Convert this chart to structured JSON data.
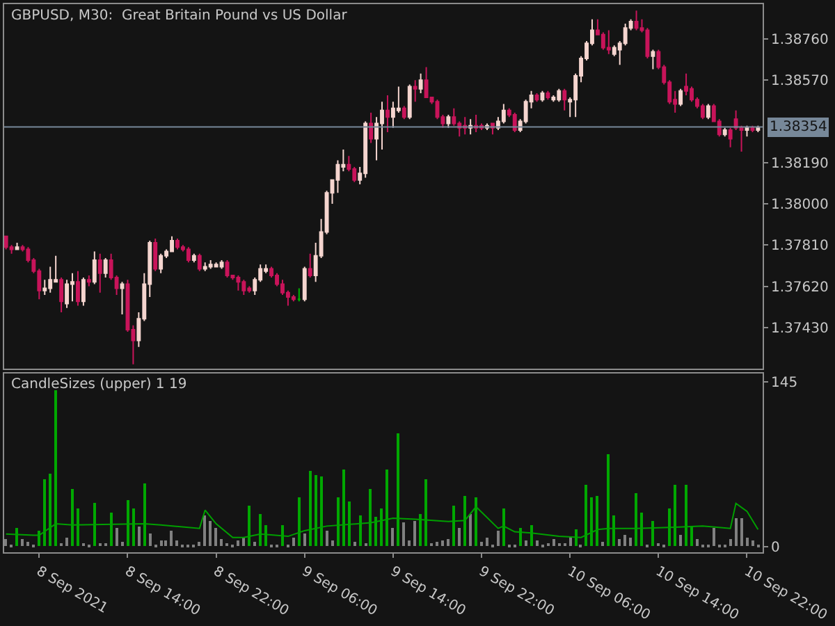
{
  "chart_data": [
    {
      "type": "candlestick",
      "title": "GBPUSD, M30:  Great Britain Pound vs US Dollar",
      "x": [
        "2021-09-08T03:00",
        "2021-09-08T03:30",
        "2021-09-08T04:00",
        "2021-09-08T04:30",
        "2021-09-08T05:00",
        "2021-09-08T05:30",
        "2021-09-08T06:00",
        "2021-09-08T06:30",
        "2021-09-08T07:00",
        "2021-09-08T07:30",
        "2021-09-08T08:00",
        "2021-09-08T08:30",
        "2021-09-08T09:00",
        "2021-09-08T09:30",
        "2021-09-08T10:00",
        "2021-09-08T10:30",
        "2021-09-08T11:00",
        "2021-09-08T11:30",
        "2021-09-08T12:00",
        "2021-09-08T12:30",
        "2021-09-08T13:00",
        "2021-09-08T13:30",
        "2021-09-08T14:00",
        "2021-09-08T14:30",
        "2021-09-08T15:00",
        "2021-09-08T15:30",
        "2021-09-08T16:00",
        "2021-09-08T16:30",
        "2021-09-08T17:00",
        "2021-09-08T17:30",
        "2021-09-08T18:00",
        "2021-09-08T18:30",
        "2021-09-08T19:00",
        "2021-09-08T19:30",
        "2021-09-08T20:00",
        "2021-09-08T20:30",
        "2021-09-08T21:00",
        "2021-09-08T21:30",
        "2021-09-08T22:00",
        "2021-09-08T22:30",
        "2021-09-08T23:00",
        "2021-09-08T23:30",
        "2021-09-09T00:00",
        "2021-09-09T00:30",
        "2021-09-09T01:00",
        "2021-09-09T01:30",
        "2021-09-09T02:00",
        "2021-09-09T02:30",
        "2021-09-09T03:00",
        "2021-09-09T03:30",
        "2021-09-09T04:00",
        "2021-09-09T04:30",
        "2021-09-09T05:00",
        "2021-09-09T05:30",
        "2021-09-09T06:00",
        "2021-09-09T06:30",
        "2021-09-09T07:00",
        "2021-09-09T07:30",
        "2021-09-09T08:00",
        "2021-09-09T08:30",
        "2021-09-09T09:00",
        "2021-09-09T09:30",
        "2021-09-09T10:00",
        "2021-09-09T10:30",
        "2021-09-09T11:00",
        "2021-09-09T11:30",
        "2021-09-09T12:00",
        "2021-09-09T12:30",
        "2021-09-09T13:00",
        "2021-09-09T13:30",
        "2021-09-09T14:00",
        "2021-09-09T14:30",
        "2021-09-09T15:00",
        "2021-09-09T15:30",
        "2021-09-09T16:00",
        "2021-09-09T16:30",
        "2021-09-09T17:00",
        "2021-09-09T17:30",
        "2021-09-09T18:00",
        "2021-09-09T18:30",
        "2021-09-09T19:00",
        "2021-09-09T19:30",
        "2021-09-09T20:00",
        "2021-09-09T20:30",
        "2021-09-09T21:00",
        "2021-09-09T21:30",
        "2021-09-09T22:00",
        "2021-09-09T22:30",
        "2021-09-09T23:00",
        "2021-09-09T23:30",
        "2021-09-10T00:00",
        "2021-09-10T00:30",
        "2021-09-10T01:00",
        "2021-09-10T01:30",
        "2021-09-10T02:00",
        "2021-09-10T02:30",
        "2021-09-10T03:00",
        "2021-09-10T03:30",
        "2021-09-10T04:00",
        "2021-09-10T04:30",
        "2021-09-10T05:00",
        "2021-09-10T05:30",
        "2021-09-10T06:00",
        "2021-09-10T06:30",
        "2021-09-10T07:00",
        "2021-09-10T07:30",
        "2021-09-10T08:00",
        "2021-09-10T08:30",
        "2021-09-10T09:00",
        "2021-09-10T09:30",
        "2021-09-10T10:00",
        "2021-09-10T10:30",
        "2021-09-10T11:00",
        "2021-09-10T11:30",
        "2021-09-10T12:00",
        "2021-09-10T12:30",
        "2021-09-10T13:00",
        "2021-09-10T13:30",
        "2021-09-10T14:00",
        "2021-09-10T14:30",
        "2021-09-10T15:00",
        "2021-09-10T15:30",
        "2021-09-10T16:00",
        "2021-09-10T16:30",
        "2021-09-10T17:00",
        "2021-09-10T17:30",
        "2021-09-10T18:00",
        "2021-09-10T18:30",
        "2021-09-10T19:00",
        "2021-09-10T19:30",
        "2021-09-10T20:00",
        "2021-09-10T20:30",
        "2021-09-10T21:00",
        "2021-09-10T21:30",
        "2021-09-10T22:00",
        "2021-09-10T22:30",
        "2021-09-10T23:00"
      ],
      "ohlc": [
        [
          1.3785,
          1.3785,
          1.3779,
          1.378
        ],
        [
          1.378,
          1.3781,
          1.3777,
          1.3779
        ],
        [
          1.3779,
          1.3782,
          1.3779,
          1.378
        ],
        [
          1.378,
          1.3781,
          1.3778,
          1.3779
        ],
        [
          1.3779,
          1.378,
          1.3773,
          1.3774
        ],
        [
          1.3774,
          1.3775,
          1.3768,
          1.3769
        ],
        [
          1.3769,
          1.377,
          1.3756,
          1.376
        ],
        [
          1.376,
          1.3765,
          1.3758,
          1.3761
        ],
        [
          1.3761,
          1.3771,
          1.3759,
          1.3765
        ],
        [
          1.3764,
          1.3776,
          1.3764,
          1.3765
        ],
        [
          1.3765,
          1.3766,
          1.375,
          1.3755
        ],
        [
          1.3754,
          1.3765,
          1.3752,
          1.3763
        ],
        [
          1.3763,
          1.3768,
          1.3755,
          1.3764
        ],
        [
          1.3764,
          1.3769,
          1.3753,
          1.3755
        ],
        [
          1.3755,
          1.3766,
          1.3753,
          1.3765
        ],
        [
          1.3765,
          1.3767,
          1.3762,
          1.3764
        ],
        [
          1.3764,
          1.3778,
          1.3763,
          1.3774
        ],
        [
          1.3774,
          1.3777,
          1.3759,
          1.3768
        ],
        [
          1.3768,
          1.3775,
          1.3766,
          1.3774
        ],
        [
          1.3774,
          1.3777,
          1.3765,
          1.3766
        ],
        [
          1.3766,
          1.3767,
          1.3758,
          1.3761
        ],
        [
          1.3761,
          1.3764,
          1.3749,
          1.3763
        ],
        [
          1.3763,
          1.3765,
          1.3741,
          1.3742
        ],
        [
          1.3742,
          1.3744,
          1.3726,
          1.3737
        ],
        [
          1.3737,
          1.375,
          1.3734,
          1.3747
        ],
        [
          1.3747,
          1.3768,
          1.3746,
          1.3763
        ],
        [
          1.3763,
          1.3783,
          1.3757,
          1.3782
        ],
        [
          1.3782,
          1.3784,
          1.3769,
          1.377
        ],
        [
          1.377,
          1.3777,
          1.3768,
          1.3776
        ],
        [
          1.3776,
          1.3779,
          1.3775,
          1.3778
        ],
        [
          1.3778,
          1.3785,
          1.3778,
          1.3783
        ],
        [
          1.3783,
          1.3784,
          1.3779,
          1.378
        ],
        [
          1.378,
          1.3781,
          1.3778,
          1.3779
        ],
        [
          1.3779,
          1.378,
          1.3773,
          1.3774
        ],
        [
          1.3774,
          1.3777,
          1.3773,
          1.3776
        ],
        [
          1.3776,
          1.3777,
          1.3769,
          1.377
        ],
        [
          1.377,
          1.3773,
          1.3769,
          1.3771
        ],
        [
          1.3771,
          1.3774,
          1.377,
          1.3772
        ],
        [
          1.3771,
          1.3773,
          1.3771,
          1.3772
        ],
        [
          1.3771,
          1.3774,
          1.377,
          1.3773
        ],
        [
          1.3773,
          1.3774,
          1.3766,
          1.3767
        ],
        [
          1.3767,
          1.3767,
          1.3765,
          1.3766
        ],
        [
          1.3766,
          1.3767,
          1.376,
          1.3764
        ],
        [
          1.3764,
          1.3765,
          1.3758,
          1.376
        ],
        [
          1.3761,
          1.3762,
          1.3759,
          1.376
        ],
        [
          1.376,
          1.3766,
          1.3758,
          1.3765
        ],
        [
          1.3765,
          1.3772,
          1.3764,
          1.377
        ],
        [
          1.3769,
          1.3772,
          1.3768,
          1.377
        ],
        [
          1.377,
          1.3771,
          1.3766,
          1.3767
        ],
        [
          1.3767,
          1.3768,
          1.3762,
          1.3763
        ],
        [
          1.3763,
          1.3765,
          1.3758,
          1.3759
        ],
        [
          1.3759,
          1.376,
          1.3753,
          1.3757
        ],
        [
          1.3757,
          1.3758,
          1.3755,
          1.3756
        ],
        [
          1.3756,
          1.3761,
          1.3755,
          1.3756
        ],
        [
          1.3756,
          1.3771,
          1.3755,
          1.377
        ],
        [
          1.377,
          1.3777,
          1.3766,
          1.3767
        ],
        [
          1.3767,
          1.3782,
          1.3764,
          1.3776
        ],
        [
          1.3776,
          1.3793,
          1.3775,
          1.3787
        ],
        [
          1.3787,
          1.3806,
          1.3786,
          1.3805
        ],
        [
          1.3805,
          1.3811,
          1.38,
          1.3811
        ],
        [
          1.3811,
          1.382,
          1.3805,
          1.3818
        ],
        [
          1.3817,
          1.3825,
          1.3815,
          1.3818
        ],
        [
          1.3818,
          1.3822,
          1.3815,
          1.3816
        ],
        [
          1.3816,
          1.3817,
          1.381,
          1.3811
        ],
        [
          1.3811,
          1.3817,
          1.3809,
          1.3814
        ],
        [
          1.3814,
          1.3838,
          1.3812,
          1.3837
        ],
        [
          1.3837,
          1.3842,
          1.3828,
          1.383
        ],
        [
          1.383,
          1.384,
          1.382,
          1.3837
        ],
        [
          1.3837,
          1.3847,
          1.3825,
          1.3843
        ],
        [
          1.3843,
          1.385,
          1.3833,
          1.384
        ],
        [
          1.384,
          1.3847,
          1.3835,
          1.3844
        ],
        [
          1.3843,
          1.3854,
          1.3842,
          1.3844
        ],
        [
          1.3844,
          1.3845,
          1.3839,
          1.384
        ],
        [
          1.384,
          1.3855,
          1.3839,
          1.3854
        ],
        [
          1.3854,
          1.3857,
          1.3847,
          1.3853
        ],
        [
          1.3853,
          1.386,
          1.3851,
          1.3857
        ],
        [
          1.3857,
          1.3863,
          1.3849,
          1.3849
        ],
        [
          1.3849,
          1.3849,
          1.3846,
          1.3847
        ],
        [
          1.3847,
          1.3848,
          1.3839,
          1.384
        ],
        [
          1.384,
          1.3841,
          1.3835,
          1.3837
        ],
        [
          1.3837,
          1.3841,
          1.3835,
          1.384
        ],
        [
          1.384,
          1.3844,
          1.3836,
          1.3837
        ],
        [
          1.3837,
          1.3838,
          1.3831,
          1.3835
        ],
        [
          1.3836,
          1.384,
          1.3832,
          1.3835
        ],
        [
          1.3835,
          1.3839,
          1.3832,
          1.3836
        ],
        [
          1.3836,
          1.3841,
          1.3833,
          1.3835
        ],
        [
          1.3836,
          1.3837,
          1.3834,
          1.3835
        ],
        [
          1.3835,
          1.3837,
          1.3834,
          1.3836
        ],
        [
          1.3837,
          1.3837,
          1.3832,
          1.3835
        ],
        [
          1.3835,
          1.384,
          1.3834,
          1.3838
        ],
        [
          1.3838,
          1.3846,
          1.3837,
          1.3843
        ],
        [
          1.3843,
          1.3844,
          1.384,
          1.3841
        ],
        [
          1.3841,
          1.3842,
          1.3833,
          1.3834
        ],
        [
          1.3834,
          1.3839,
          1.3833,
          1.3838
        ],
        [
          1.3838,
          1.3848,
          1.3837,
          1.3847
        ],
        [
          1.3847,
          1.3852,
          1.3844,
          1.385
        ],
        [
          1.385,
          1.3851,
          1.3847,
          1.3848
        ],
        [
          1.3848,
          1.3852,
          1.3847,
          1.3851
        ],
        [
          1.3851,
          1.3852,
          1.3848,
          1.3849
        ],
        [
          1.3848,
          1.385,
          1.3847,
          1.3849
        ],
        [
          1.3848,
          1.3853,
          1.3847,
          1.3852
        ],
        [
          1.3852,
          1.3853,
          1.3843,
          1.3848
        ],
        [
          1.3847,
          1.3849,
          1.384,
          1.3848
        ],
        [
          1.3848,
          1.386,
          1.384,
          1.3859
        ],
        [
          1.3859,
          1.3868,
          1.3856,
          1.3867
        ],
        [
          1.3867,
          1.3875,
          1.3866,
          1.3874
        ],
        [
          1.3874,
          1.3885,
          1.3873,
          1.388
        ],
        [
          1.388,
          1.3885,
          1.3878,
          1.3878
        ],
        [
          1.3878,
          1.3879,
          1.3871,
          1.3872
        ],
        [
          1.3872,
          1.388,
          1.3869,
          1.3871
        ],
        [
          1.3869,
          1.3873,
          1.3868,
          1.3872
        ],
        [
          1.3871,
          1.3875,
          1.3864,
          1.3874
        ],
        [
          1.3874,
          1.3883,
          1.3873,
          1.3881
        ],
        [
          1.3881,
          1.3885,
          1.388,
          1.3884
        ],
        [
          1.3884,
          1.3889,
          1.388,
          1.3881
        ],
        [
          1.3881,
          1.3885,
          1.3879,
          1.388
        ],
        [
          1.388,
          1.3881,
          1.3867,
          1.3868
        ],
        [
          1.3868,
          1.3871,
          1.3862,
          1.387
        ],
        [
          1.387,
          1.3871,
          1.3862,
          1.3863
        ],
        [
          1.3863,
          1.3864,
          1.3855,
          1.3856
        ],
        [
          1.3856,
          1.3857,
          1.3846,
          1.3847
        ],
        [
          1.3848,
          1.3852,
          1.3842,
          1.3846
        ],
        [
          1.3846,
          1.3853,
          1.3845,
          1.3852
        ],
        [
          1.3854,
          1.386,
          1.385,
          1.3852
        ],
        [
          1.3853,
          1.3854,
          1.3847,
          1.3848
        ],
        [
          1.3848,
          1.3849,
          1.3844,
          1.3845
        ],
        [
          1.3845,
          1.3846,
          1.3839,
          1.384
        ],
        [
          1.384,
          1.3846,
          1.3839,
          1.3845
        ],
        [
          1.3845,
          1.3846,
          1.3838,
          1.3838
        ],
        [
          1.3838,
          1.3839,
          1.3831,
          1.3832
        ],
        [
          1.3832,
          1.3835,
          1.3831,
          1.3834
        ],
        [
          1.3834,
          1.3835,
          1.3826,
          1.383
        ],
        [
          1.3839,
          1.3843,
          1.3834,
          1.3835
        ],
        [
          1.3835,
          1.3836,
          1.3824,
          1.3834
        ],
        [
          1.3834,
          1.3836,
          1.3831,
          1.3835
        ],
        [
          1.3835,
          1.3836,
          1.3833,
          1.3834
        ],
        [
          1.3834,
          1.3836,
          1.3833,
          1.3835
        ]
      ],
      "colors": [
        "#c8145a",
        "#c8145a",
        "#f5d5cf",
        "#c8145a",
        "#c8145a",
        "#c8145a",
        "#c8145a",
        "#f5d5cf",
        "#f5d5cf",
        "#f5d5cf",
        "#c8145a",
        "#f5d5cf",
        "#f5d5cf",
        "#c8145a",
        "#f5d5cf",
        "#c8145a",
        "#f5d5cf",
        "#c8145a",
        "#f5d5cf",
        "#c8145a",
        "#c8145a",
        "#f5d5cf",
        "#c8145a",
        "#c8145a",
        "#f5d5cf",
        "#f5d5cf",
        "#f5d5cf",
        "#c8145a",
        "#f5d5cf",
        "#f5d5cf",
        "#f5d5cf",
        "#c8145a",
        "#c8145a",
        "#c8145a",
        "#f5d5cf",
        "#c8145a",
        "#f5d5cf",
        "#f5d5cf",
        "#f5d5cf",
        "#f5d5cf",
        "#c8145a",
        "#c8145a",
        "#c8145a",
        "#c8145a",
        "#c8145a",
        "#f5d5cf",
        "#f5d5cf",
        "#f5d5cf",
        "#c8145a",
        "#c8145a",
        "#c8145a",
        "#c8145a",
        "#c8145a",
        "#00b400",
        "#f5d5cf",
        "#c8145a",
        "#f5d5cf",
        "#f5d5cf",
        "#f5d5cf",
        "#f5d5cf",
        "#f5d5cf",
        "#f5d5cf",
        "#c8145a",
        "#c8145a",
        "#f5d5cf",
        "#f5d5cf",
        "#c8145a",
        "#f5d5cf",
        "#f5d5cf",
        "#c8145a",
        "#f5d5cf",
        "#f5d5cf",
        "#c8145a",
        "#f5d5cf",
        "#c8145a",
        "#f5d5cf",
        "#c8145a",
        "#c8145a",
        "#c8145a",
        "#c8145a",
        "#f5d5cf",
        "#c8145a",
        "#c8145a",
        "#c8145a",
        "#f5d5cf",
        "#c8145a",
        "#c8145a",
        "#f5d5cf",
        "#c8145a",
        "#f5d5cf",
        "#f5d5cf",
        "#c8145a",
        "#c8145a",
        "#f5d5cf",
        "#f5d5cf",
        "#f5d5cf",
        "#c8145a",
        "#f5d5cf",
        "#c8145a",
        "#f5d5cf",
        "#f5d5cf",
        "#c8145a",
        "#f5d5cf",
        "#f5d5cf",
        "#f5d5cf",
        "#f5d5cf",
        "#f5d5cf",
        "#c8145a",
        "#c8145a",
        "#c8145a",
        "#f5d5cf",
        "#f5d5cf",
        "#f5d5cf",
        "#f5d5cf",
        "#c8145a",
        "#c8145a",
        "#c8145a",
        "#f5d5cf",
        "#c8145a",
        "#c8145a",
        "#c8145a",
        "#c8145a",
        "#f5d5cf",
        "#c8145a",
        "#c8145a",
        "#c8145a",
        "#c8145a",
        "#f5d5cf",
        "#c8145a",
        "#c8145a",
        "#f5d5cf",
        "#c8145a",
        "#c8145a",
        "#c8145a",
        "#f5d5cf",
        "#c8145a",
        "#f5d5cf"
      ],
      "xlim": [
        "2021-09-08T02:50",
        "2021-09-10T23:25"
      ],
      "ylim": [
        1.3724,
        1.3892
      ],
      "yticks": [
        {
          "value": 1.3743,
          "label": "1.37430"
        },
        {
          "value": 1.3762,
          "label": "1.37620"
        },
        {
          "value": 1.3781,
          "label": "1.37810"
        },
        {
          "value": 1.38,
          "label": "1.38000"
        },
        {
          "value": 1.3819,
          "label": "1.38190"
        },
        {
          "value": 1.3857,
          "label": "1.38570"
        },
        {
          "value": 1.3876,
          "label": "1.38760"
        }
      ],
      "ref_lines": [
        {
          "axis": "y",
          "value": 1.38354,
          "label": "1.38354",
          "color": "#778899"
        }
      ],
      "tick_labels": "y"
    },
    {
      "type": "bar",
      "title": "CandleSizes (upper) 1 19",
      "x": [
        "2021-09-08T03:00",
        "2021-09-08T03:30",
        "2021-09-08T04:00",
        "2021-09-08T04:30",
        "2021-09-08T05:00",
        "2021-09-08T05:30",
        "2021-09-08T06:00",
        "2021-09-08T06:30",
        "2021-09-08T07:00",
        "2021-09-08T07:30",
        "2021-09-08T08:00",
        "2021-09-08T08:30",
        "2021-09-08T09:00",
        "2021-09-08T09:30",
        "2021-09-08T10:00",
        "2021-09-08T10:30",
        "2021-09-08T11:00",
        "2021-09-08T11:30",
        "2021-09-08T12:00",
        "2021-09-08T12:30",
        "2021-09-08T13:00",
        "2021-09-08T13:30",
        "2021-09-08T14:00",
        "2021-09-08T14:30",
        "2021-09-08T15:00",
        "2021-09-08T15:30",
        "2021-09-08T16:00",
        "2021-09-08T16:30",
        "2021-09-08T17:00",
        "2021-09-08T17:30",
        "2021-09-08T18:00",
        "2021-09-08T18:30",
        "2021-09-08T19:00",
        "2021-09-08T19:30",
        "2021-09-08T20:00",
        "2021-09-08T20:30",
        "2021-09-08T21:00",
        "2021-09-08T21:30",
        "2021-09-08T22:00",
        "2021-09-08T22:30",
        "2021-09-08T23:00",
        "2021-09-08T23:30",
        "2021-09-09T00:00",
        "2021-09-09T00:30",
        "2021-09-09T01:00",
        "2021-09-09T01:30",
        "2021-09-09T02:00",
        "2021-09-09T02:30",
        "2021-09-09T03:00",
        "2021-09-09T03:30",
        "2021-09-09T04:00",
        "2021-09-09T04:30",
        "2021-09-09T05:00",
        "2021-09-09T05:30",
        "2021-09-09T06:00",
        "2021-09-09T06:30",
        "2021-09-09T07:00",
        "2021-09-09T07:30",
        "2021-09-09T08:00",
        "2021-09-09T08:30",
        "2021-09-09T09:00",
        "2021-09-09T09:30",
        "2021-09-09T10:00",
        "2021-09-09T10:30",
        "2021-09-09T11:00",
        "2021-09-09T11:30",
        "2021-09-09T12:00",
        "2021-09-09T12:30",
        "2021-09-09T13:00",
        "2021-09-09T13:30",
        "2021-09-09T14:00",
        "2021-09-09T14:30",
        "2021-09-09T15:00",
        "2021-09-09T15:30",
        "2021-09-09T16:00",
        "2021-09-09T16:30",
        "2021-09-09T17:00",
        "2021-09-09T17:30",
        "2021-09-09T18:00",
        "2021-09-09T18:30",
        "2021-09-09T19:00",
        "2021-09-09T19:30",
        "2021-09-09T20:00",
        "2021-09-09T20:30",
        "2021-09-09T21:00",
        "2021-09-09T21:30",
        "2021-09-09T22:00",
        "2021-09-09T22:30",
        "2021-09-09T23:00",
        "2021-09-09T23:30",
        "2021-09-10T00:00",
        "2021-09-10T00:30",
        "2021-09-10T01:00",
        "2021-09-10T01:30",
        "2021-09-10T02:00",
        "2021-09-10T02:30",
        "2021-09-10T03:00",
        "2021-09-10T03:30",
        "2021-09-10T04:00",
        "2021-09-10T04:30",
        "2021-09-10T05:00",
        "2021-09-10T05:30",
        "2021-09-10T06:00",
        "2021-09-10T06:30",
        "2021-09-10T07:00",
        "2021-09-10T07:30",
        "2021-09-10T08:00",
        "2021-09-10T08:30",
        "2021-09-10T09:00",
        "2021-09-10T09:30",
        "2021-09-10T10:00",
        "2021-09-10T10:30",
        "2021-09-10T11:00",
        "2021-09-10T11:30",
        "2021-09-10T12:00",
        "2021-09-10T12:30",
        "2021-09-10T13:00",
        "2021-09-10T13:30",
        "2021-09-10T14:00",
        "2021-09-10T14:30",
        "2021-09-10T15:00",
        "2021-09-10T15:30",
        "2021-09-10T16:00",
        "2021-09-10T16:30",
        "2021-09-10T17:00",
        "2021-09-10T17:30",
        "2021-09-10T18:00",
        "2021-09-10T18:30",
        "2021-09-10T19:00",
        "2021-09-10T19:30",
        "2021-09-10T20:00",
        "2021-09-10T20:30",
        "2021-09-10T21:00",
        "2021-09-10T21:30",
        "2021-09-10T22:00",
        "2021-09-10T22:30",
        "2021-09-10T23:00"
      ],
      "series": [
        {
          "type": "bar",
          "values": [
            6,
            2,
            16,
            7,
            4,
            2,
            14,
            59,
            64,
            137,
            3,
            8,
            50,
            33,
            3,
            2,
            38,
            3,
            3,
            30,
            16,
            4,
            41,
            33,
            18,
            55,
            12,
            2,
            5,
            5,
            14,
            5,
            2,
            2,
            2,
            4,
            27,
            23,
            16,
            7,
            3,
            2,
            5,
            8,
            36,
            4,
            28,
            19,
            2,
            2,
            19,
            2,
            8,
            43,
            12,
            67,
            63,
            61,
            14,
            5,
            43,
            68,
            40,
            4,
            27,
            3,
            50,
            26,
            33,
            68,
            16,
            100,
            21,
            5,
            22,
            29,
            59,
            3,
            4,
            5,
            6,
            36,
            16,
            44,
            29,
            43,
            4,
            8,
            2,
            14,
            33,
            2,
            2,
            16,
            5,
            19,
            5,
            2,
            3,
            7,
            3,
            3,
            9,
            15,
            2,
            54,
            43,
            44,
            4,
            81,
            27,
            7,
            10,
            8,
            47,
            30,
            2,
            22,
            3,
            2,
            34,
            54,
            10,
            54,
            18,
            7,
            2,
            2,
            16,
            2,
            2,
            7,
            25,
            25,
            8,
            5,
            2
          ],
          "colors": [
            "#808080",
            "#808080",
            "#00a800",
            "#808080",
            "#808080",
            "#808080",
            "#00a800",
            "#00a800",
            "#00a800",
            "#00a800",
            "#808080",
            "#808080",
            "#00a800",
            "#00a800",
            "#808080",
            "#808080",
            "#00a800",
            "#808080",
            "#808080",
            "#00a800",
            "#808080",
            "#808080",
            "#00a800",
            "#00a800",
            "#808080",
            "#00a800",
            "#808080",
            "#808080",
            "#808080",
            "#808080",
            "#808080",
            "#808080",
            "#808080",
            "#808080",
            "#808080",
            "#808080",
            "#808080",
            "#808080",
            "#808080",
            "#808080",
            "#808080",
            "#808080",
            "#808080",
            "#808080",
            "#00a800",
            "#808080",
            "#00a800",
            "#00a800",
            "#808080",
            "#808080",
            "#00a800",
            "#808080",
            "#808080",
            "#00a800",
            "#808080",
            "#00a800",
            "#00a800",
            "#00a800",
            "#808080",
            "#808080",
            "#00a800",
            "#00a800",
            "#00a800",
            "#808080",
            "#00a800",
            "#808080",
            "#00a800",
            "#00a800",
            "#00a800",
            "#00a800",
            "#808080",
            "#00a800",
            "#808080",
            "#808080",
            "#808080",
            "#00a800",
            "#00a800",
            "#808080",
            "#808080",
            "#808080",
            "#808080",
            "#00a800",
            "#808080",
            "#00a800",
            "#808080",
            "#00a800",
            "#808080",
            "#808080",
            "#808080",
            "#808080",
            "#00a800",
            "#808080",
            "#808080",
            "#00a800",
            "#808080",
            "#00a800",
            "#808080",
            "#808080",
            "#808080",
            "#808080",
            "#808080",
            "#808080",
            "#808080",
            "#00a800",
            "#808080",
            "#00a800",
            "#00a800",
            "#00a800",
            "#808080",
            "#00a800",
            "#00a800",
            "#808080",
            "#808080",
            "#808080",
            "#00a800",
            "#00a800",
            "#808080",
            "#00a800",
            "#808080",
            "#808080",
            "#00a800",
            "#00a800",
            "#808080",
            "#00a800",
            "#00a800",
            "#808080",
            "#808080",
            "#808080",
            "#808080",
            "#808080",
            "#808080",
            "#808080",
            "#808080",
            "#808080",
            "#808080",
            "#808080",
            "#808080"
          ]
        },
        {
          "type": "line",
          "color": "#00a000",
          "x": [
            "2021-09-08T03:00",
            "2021-09-08T05:30",
            "2021-09-08T06:00",
            "2021-09-08T07:30",
            "2021-09-08T09:00",
            "2021-09-08T15:30",
            "2021-09-08T17:00",
            "2021-09-08T20:30",
            "2021-09-08T21:00",
            "2021-09-08T22:00",
            "2021-09-08T23:30",
            "2021-09-09T00:30",
            "2021-09-09T02:00",
            "2021-09-09T04:30",
            "2021-09-09T06:00",
            "2021-09-09T08:00",
            "2021-09-09T12:00",
            "2021-09-09T14:00",
            "2021-09-09T16:00",
            "2021-09-09T19:00",
            "2021-09-09T20:30",
            "2021-09-09T21:30",
            "2021-09-09T23:30",
            "2021-09-10T00:00",
            "2021-09-10T01:00",
            "2021-09-10T02:30",
            "2021-09-10T05:00",
            "2021-09-10T07:00",
            "2021-09-10T08:30",
            "2021-09-10T09:30",
            "2021-09-10T12:00",
            "2021-09-10T15:30",
            "2021-09-10T18:00",
            "2021-09-10T20:30",
            "2021-09-10T21:00",
            "2021-09-10T22:00",
            "2021-09-10T23:00"
          ],
          "values": [
            11,
            10,
            10,
            20,
            19,
            20,
            19,
            16,
            32,
            20,
            8,
            8,
            11,
            9,
            14,
            18,
            21,
            25,
            24,
            22,
            23,
            35,
            16,
            18,
            13,
            12,
            9,
            8,
            15,
            16,
            16,
            17,
            18,
            16,
            38,
            31,
            15
          ]
        }
      ],
      "xlim": [
        "2021-09-08T02:50",
        "2021-09-10T23:25"
      ],
      "xticks": [
        {
          "value": "2021-09-08T06:00",
          "label": "8 Sep 2021"
        },
        {
          "value": "2021-09-08T14:00",
          "label": "8 Sep 14:00"
        },
        {
          "value": "2021-09-08T22:00",
          "label": "8 Sep 22:00"
        },
        {
          "value": "2021-09-09T06:00",
          "label": "9 Sep 06:00"
        },
        {
          "value": "2021-09-09T14:00",
          "label": "9 Sep 14:00"
        },
        {
          "value": "2021-09-09T22:00",
          "label": "9 Sep 22:00"
        },
        {
          "value": "2021-09-10T06:00",
          "label": "10 Sep 06:00"
        },
        {
          "value": "2021-09-10T14:00",
          "label": "10 Sep 14:00"
        },
        {
          "value": "2021-09-10T22:00",
          "label": "10 Sep 22:00"
        }
      ],
      "ylim": [
        -5,
        152
      ],
      "yticks": [
        0,
        145
      ]
    }
  ]
}
